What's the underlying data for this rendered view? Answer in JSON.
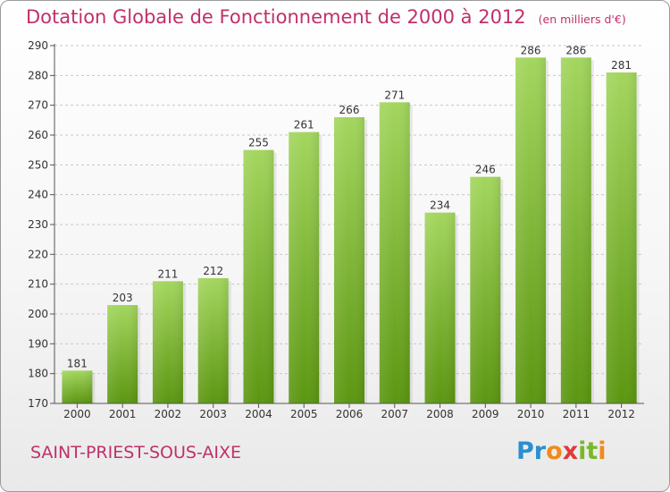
{
  "header": {
    "title": "Dotation Globale de Fonctionnement de 2000 à 2012",
    "subtitle": "(en milliers d'€)"
  },
  "footer": {
    "place": "SAINT-PRIEST-SOUS-AIXE",
    "logo_letters": [
      "P",
      "r",
      "o",
      "x",
      "i",
      "t",
      "i"
    ]
  },
  "colors": {
    "accent": "#c0306a",
    "bar_light": "#9fd45a",
    "bar_dark": "#5f9a12",
    "grid": "#c8c8c8"
  },
  "chart_data": {
    "type": "bar",
    "title": "Dotation Globale de Fonctionnement de 2000 à 2012",
    "subtitle": "(en milliers d'€)",
    "xlabel": "",
    "ylabel": "",
    "categories": [
      "2000",
      "2001",
      "2002",
      "2003",
      "2004",
      "2005",
      "2006",
      "2007",
      "2008",
      "2009",
      "2010",
      "2011",
      "2012"
    ],
    "values": [
      181,
      203,
      211,
      212,
      255,
      261,
      266,
      271,
      234,
      246,
      286,
      286,
      281
    ],
    "ylim": [
      170,
      290
    ],
    "yticks": [
      170,
      180,
      190,
      200,
      210,
      220,
      230,
      240,
      250,
      260,
      270,
      280,
      290
    ],
    "grid": "horizontal dashed"
  }
}
